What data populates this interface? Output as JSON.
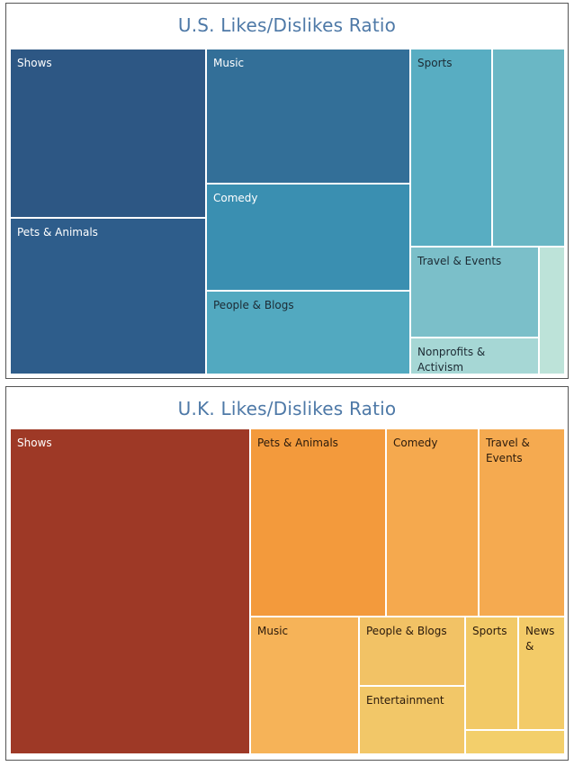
{
  "panels": {
    "us": {
      "title": "U.S. Likes/Dislikes Ratio"
    },
    "uk": {
      "title": "U.K. Likes/Dislikes Ratio"
    }
  },
  "chart_data": [
    {
      "type": "treemap",
      "title": "U.S. Likes/Dislikes Ratio",
      "color_scheme": "blue-teal",
      "tiles": [
        {
          "label": "Shows",
          "color": "#2d5784",
          "label_color": "#ffffff"
        },
        {
          "label": "Pets & Animals",
          "color": "#2e5d8b",
          "label_color": "#ffffff"
        },
        {
          "label": "Music",
          "color": "#336f98",
          "label_color": "#ffffff"
        },
        {
          "label": "Comedy",
          "color": "#3a8fb1",
          "label_color": "#ffffff"
        },
        {
          "label": "People & Blogs",
          "color": "#52a9c0",
          "label_color": "#1c2a33"
        },
        {
          "label": "Sports",
          "color": "#58adc2",
          "label_color": "#1c2a33"
        },
        {
          "label": "",
          "color": "#6ab7c5",
          "label_color": "#1c2a33"
        },
        {
          "label": "Travel & Events",
          "color": "#7bbfc9",
          "label_color": "#1c2a33"
        },
        {
          "label": "Nonprofits & Activism",
          "color": "#a6d7d5",
          "label_color": "#1c2a33"
        },
        {
          "label": "",
          "color": "#bde3d9",
          "label_color": "#1c2a33"
        }
      ]
    },
    {
      "type": "treemap",
      "title": "U.K. Likes/Dislikes Ratio",
      "color_scheme": "orange-red",
      "tiles": [
        {
          "label": "Shows",
          "color": "#9e3926",
          "label_color": "#ffffff"
        },
        {
          "label": "Pets & Animals",
          "color": "#f39a3c",
          "label_color": "#2a1a0c"
        },
        {
          "label": "Comedy",
          "color": "#f5a94e",
          "label_color": "#2a1a0c"
        },
        {
          "label": "Travel & Events",
          "color": "#f5aa50",
          "label_color": "#2a1a0c"
        },
        {
          "label": "Music",
          "color": "#f6b358",
          "label_color": "#2a1a0c"
        },
        {
          "label": "People & Blogs",
          "color": "#f2c265",
          "label_color": "#2a1a0c"
        },
        {
          "label": "Entertainment",
          "color": "#f2c768",
          "label_color": "#2a1a0c"
        },
        {
          "label": "Sports",
          "color": "#f2c966",
          "label_color": "#2a1a0c"
        },
        {
          "label": "News &",
          "color": "#f3cb68",
          "label_color": "#2a1a0c"
        },
        {
          "label": "",
          "color": "#f3cf6b",
          "label_color": "#2a1a0c"
        }
      ]
    }
  ]
}
